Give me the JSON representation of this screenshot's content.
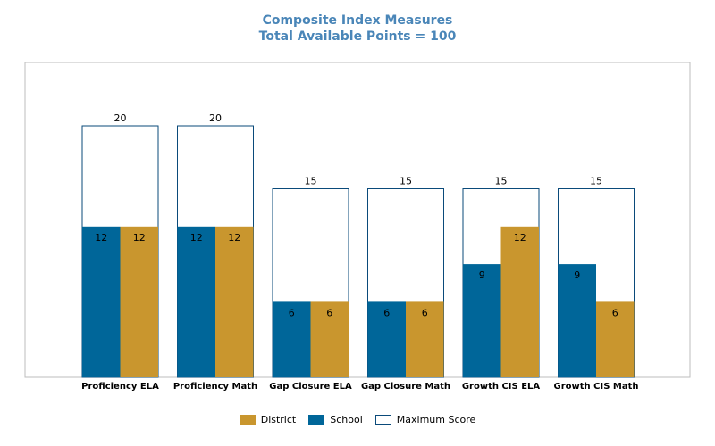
{
  "chart_data": {
    "type": "bar",
    "title": "Composite Index Measures",
    "subtitle": "Total Available Points = 100",
    "categories": [
      "Proficiency ELA",
      "Proficiency Math",
      "Gap Closure ELA",
      "Gap Closure Math",
      "Growth CIS ELA",
      "Growth CIS Math"
    ],
    "series": [
      {
        "name": "District",
        "values": [
          12,
          12,
          6,
          6,
          12,
          6
        ],
        "color": "#c9962e"
      },
      {
        "name": "School",
        "values": [
          12,
          12,
          6,
          6,
          9,
          9
        ],
        "color": "#006699"
      },
      {
        "name": "Maximum Score",
        "values": [
          20,
          20,
          15,
          15,
          15,
          15
        ],
        "color": "#ffffff",
        "stroke": "#0a4a7a"
      }
    ],
    "ylim": [
      0,
      20
    ],
    "grid": false,
    "legend_position": "bottom",
    "xlabel": "",
    "ylabel": ""
  }
}
